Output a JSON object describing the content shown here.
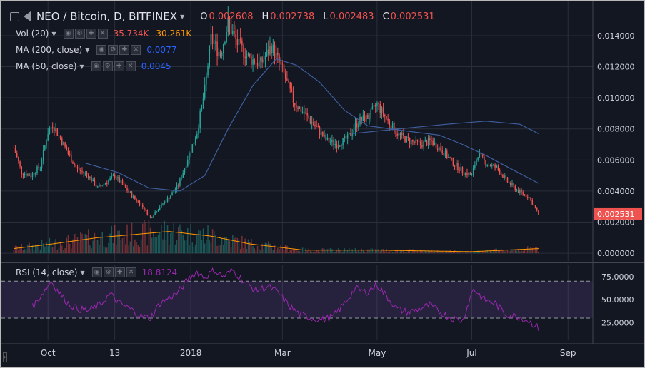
{
  "header": {
    "symbol": "NEO / Bitcoin, D, BITFINEX",
    "ohlc": [
      {
        "k": "O",
        "v": "0.002608"
      },
      {
        "k": "H",
        "v": "0.002738"
      },
      {
        "k": "L",
        "v": "0.002483"
      },
      {
        "k": "C",
        "v": "0.002531"
      }
    ]
  },
  "indicators": {
    "vol": {
      "label": "Vol (20)",
      "v1": "35.734K",
      "v1_color": "#ef5350",
      "v2": "30.261K",
      "v2_color": "#ff9800"
    },
    "ma200": {
      "label": "MA (200, close)",
      "value": "0.0077",
      "color": "#2962ff"
    },
    "ma50": {
      "label": "MA (50, close)",
      "value": "0.0045",
      "color": "#2962ff"
    },
    "rsi": {
      "label": "RSI (14, close)",
      "value": "18.8124",
      "color": "#9c27b0"
    }
  },
  "colors": {
    "up": "#26a69a",
    "down": "#ef5350",
    "background": "#131722",
    "grid": "#2a2e39",
    "ma": "#3f5e9e",
    "vol_ma": "#ff9800",
    "rsi": "#9c27b0"
  },
  "last_price_label": "0.002531",
  "chart_data": [
    {
      "type": "candlestick",
      "title": "NEO / Bitcoin, D, BITFINEX",
      "y_ticks": [
        "0.014000",
        "0.012000",
        "0.010000",
        "0.008000",
        "0.006000",
        "0.004000",
        "0.002000",
        "0.000000"
      ],
      "y_tick_values": [
        0.014,
        0.012,
        0.01,
        0.008,
        0.006,
        0.004,
        0.002,
        0.0
      ],
      "ylim": [
        -0.0005,
        0.0162
      ],
      "x_ticks": [
        "Oct",
        "13",
        "2018",
        "Mar",
        "May",
        "Jul",
        "Sep"
      ],
      "x_tick_dates": [
        "2017-10-01",
        "2017-11-13",
        "2018-01-01",
        "2018-03-01",
        "2018-05-01",
        "2018-07-01",
        "2018-09-01"
      ],
      "x_range": [
        "2017-09-01",
        "2018-09-17"
      ],
      "first_date": "2017-09-09",
      "last_date": "2018-08-13",
      "close_path": [
        [
          "2017-09-09",
          0.0068
        ],
        [
          "2017-09-14",
          0.0052
        ],
        [
          "2017-09-20",
          0.005
        ],
        [
          "2017-09-26",
          0.0056
        ],
        [
          "2017-10-01",
          0.0078
        ],
        [
          "2017-10-04",
          0.0083
        ],
        [
          "2017-10-10",
          0.0072
        ],
        [
          "2017-10-15",
          0.0062
        ],
        [
          "2017-10-20",
          0.0054
        ],
        [
          "2017-10-27",
          0.005
        ],
        [
          "2017-11-02",
          0.0042
        ],
        [
          "2017-11-08",
          0.0046
        ],
        [
          "2017-11-13",
          0.005
        ],
        [
          "2017-11-18",
          0.0044
        ],
        [
          "2017-11-25",
          0.0036
        ],
        [
          "2017-12-01",
          0.003
        ],
        [
          "2017-12-06",
          0.0023
        ],
        [
          "2017-12-12",
          0.003
        ],
        [
          "2017-12-18",
          0.0036
        ],
        [
          "2017-12-24",
          0.0044
        ],
        [
          "2017-12-29",
          0.0058
        ],
        [
          "2018-01-05",
          0.0078
        ],
        [
          "2018-01-10",
          0.0105
        ],
        [
          "2018-01-14",
          0.0138
        ],
        [
          "2018-01-20",
          0.0128
        ],
        [
          "2018-01-25",
          0.0148
        ],
        [
          "2018-01-31",
          0.0135
        ],
        [
          "2018-02-08",
          0.0125
        ],
        [
          "2018-02-15",
          0.0122
        ],
        [
          "2018-02-22",
          0.0133
        ],
        [
          "2018-03-01",
          0.0118
        ],
        [
          "2018-03-08",
          0.0098
        ],
        [
          "2018-03-15",
          0.009
        ],
        [
          "2018-03-22",
          0.0082
        ],
        [
          "2018-03-29",
          0.0073
        ],
        [
          "2018-04-05",
          0.007
        ],
        [
          "2018-04-12",
          0.0074
        ],
        [
          "2018-04-19",
          0.0085
        ],
        [
          "2018-04-26",
          0.0088
        ],
        [
          "2018-05-01",
          0.0096
        ],
        [
          "2018-05-08",
          0.0085
        ],
        [
          "2018-05-15",
          0.0076
        ],
        [
          "2018-05-22",
          0.0072
        ],
        [
          "2018-05-29",
          0.007
        ],
        [
          "2018-06-05",
          0.0072
        ],
        [
          "2018-06-12",
          0.0066
        ],
        [
          "2018-06-19",
          0.0058
        ],
        [
          "2018-06-26",
          0.0052
        ],
        [
          "2018-07-01",
          0.005
        ],
        [
          "2018-07-05",
          0.0064
        ],
        [
          "2018-07-10",
          0.0058
        ],
        [
          "2018-07-17",
          0.0055
        ],
        [
          "2018-07-24",
          0.0046
        ],
        [
          "2018-07-31",
          0.004
        ],
        [
          "2018-08-07",
          0.0036
        ],
        [
          "2018-08-13",
          0.0025
        ]
      ],
      "volume_path": [
        [
          "2017-09-09",
          0.0003
        ],
        [
          "2017-10-04",
          0.0006
        ],
        [
          "2017-11-02",
          0.001
        ],
        [
          "2017-11-25",
          0.0012
        ],
        [
          "2017-12-18",
          0.0014
        ],
        [
          "2018-01-14",
          0.0011
        ],
        [
          "2018-02-08",
          0.0006
        ],
        [
          "2018-03-15",
          0.0002
        ],
        [
          "2018-05-01",
          0.0002
        ],
        [
          "2018-07-01",
          0.0001
        ],
        [
          "2018-08-13",
          0.0003
        ]
      ],
      "series": [
        {
          "name": "MA (200, close)",
          "values": [
            [
              "2018-04-15",
              0.0077
            ],
            [
              "2018-05-15",
              0.008
            ],
            [
              "2018-06-15",
              0.0083
            ],
            [
              "2018-07-10",
              0.0085
            ],
            [
              "2018-08-01",
              0.0083
            ],
            [
              "2018-08-13",
              0.0077
            ]
          ]
        },
        {
          "name": "MA (50, close)",
          "values": [
            [
              "2017-10-25",
              0.0058
            ],
            [
              "2017-11-15",
              0.0052
            ],
            [
              "2017-12-05",
              0.0042
            ],
            [
              "2017-12-25",
              0.004
            ],
            [
              "2018-01-10",
              0.005
            ],
            [
              "2018-01-25",
              0.008
            ],
            [
              "2018-02-10",
              0.0108
            ],
            [
              "2018-02-25",
              0.0125
            ],
            [
              "2018-03-10",
              0.0121
            ],
            [
              "2018-03-25",
              0.011
            ],
            [
              "2018-04-10",
              0.0092
            ],
            [
              "2018-04-25",
              0.0082
            ],
            [
              "2018-05-10",
              0.008
            ],
            [
              "2018-05-25",
              0.0078
            ],
            [
              "2018-06-10",
              0.0076
            ],
            [
              "2018-06-25",
              0.007
            ],
            [
              "2018-07-10",
              0.0063
            ],
            [
              "2018-07-25",
              0.0055
            ],
            [
              "2018-08-13",
              0.0045
            ]
          ]
        }
      ]
    },
    {
      "type": "line",
      "title": "RSI (14, close)",
      "y_ticks": [
        "75.0000",
        "50.0000",
        "25.0000"
      ],
      "y_tick_values": [
        75,
        50,
        25
      ],
      "ylim": [
        6,
        88
      ],
      "band": [
        30,
        70
      ],
      "series": [
        {
          "name": "RSI (14, close)",
          "values": [
            [
              "2017-09-21",
              42
            ],
            [
              "2017-09-28",
              58
            ],
            [
              "2017-10-03",
              70
            ],
            [
              "2017-10-08",
              58
            ],
            [
              "2017-10-14",
              46
            ],
            [
              "2017-10-20",
              40
            ],
            [
              "2017-10-27",
              38
            ],
            [
              "2017-11-03",
              44
            ],
            [
              "2017-11-10",
              56
            ],
            [
              "2017-11-16",
              46
            ],
            [
              "2017-11-23",
              40
            ],
            [
              "2017-11-30",
              32
            ],
            [
              "2017-12-06",
              30
            ],
            [
              "2017-12-12",
              46
            ],
            [
              "2017-12-18",
              52
            ],
            [
              "2017-12-24",
              58
            ],
            [
              "2017-12-30",
              72
            ],
            [
              "2018-01-05",
              80
            ],
            [
              "2018-01-10",
              74
            ],
            [
              "2018-01-16",
              82
            ],
            [
              "2018-01-22",
              75
            ],
            [
              "2018-01-28",
              82
            ],
            [
              "2018-02-04",
              70
            ],
            [
              "2018-02-12",
              60
            ],
            [
              "2018-02-20",
              64
            ],
            [
              "2018-02-26",
              58
            ],
            [
              "2018-03-05",
              44
            ],
            [
              "2018-03-12",
              34
            ],
            [
              "2018-03-20",
              30
            ],
            [
              "2018-03-27",
              28
            ],
            [
              "2018-04-03",
              32
            ],
            [
              "2018-04-10",
              46
            ],
            [
              "2018-04-17",
              62
            ],
            [
              "2018-04-24",
              58
            ],
            [
              "2018-05-01",
              66
            ],
            [
              "2018-05-07",
              54
            ],
            [
              "2018-05-14",
              40
            ],
            [
              "2018-05-21",
              36
            ],
            [
              "2018-05-28",
              40
            ],
            [
              "2018-06-04",
              44
            ],
            [
              "2018-06-11",
              36
            ],
            [
              "2018-06-18",
              30
            ],
            [
              "2018-06-25",
              27
            ],
            [
              "2018-07-02",
              62
            ],
            [
              "2018-07-09",
              50
            ],
            [
              "2018-07-16",
              46
            ],
            [
              "2018-07-23",
              34
            ],
            [
              "2018-07-30",
              32
            ],
            [
              "2018-08-06",
              28
            ],
            [
              "2018-08-13",
              19
            ]
          ]
        }
      ]
    }
  ]
}
